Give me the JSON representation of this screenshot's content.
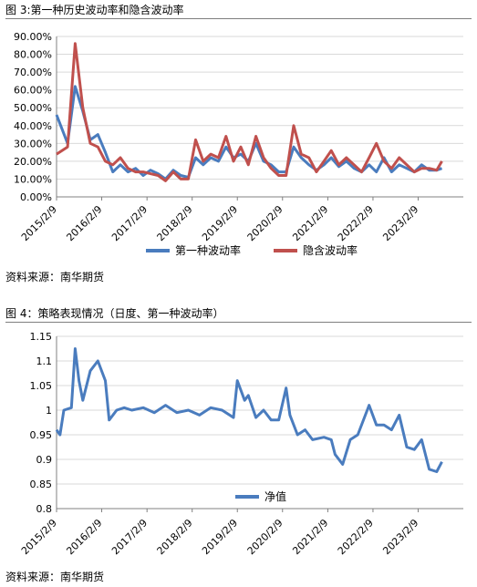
{
  "fig1": {
    "title": "图 3:第一种历史波动率和隐含波动率",
    "source": "资料来源：南华期货"
  },
  "fig2": {
    "title": "图 4：策略表现情况（日度、第一种波动率）",
    "source": "资料来源：南华期货"
  },
  "colors": {
    "hv": "#4a7cbe",
    "iv": "#c0504d",
    "nav": "#4a7cbe",
    "grid": "#d9d9d9",
    "axis": "#808080"
  },
  "chart_data": [
    {
      "type": "line",
      "ylim": [
        0,
        90
      ],
      "yticks": [
        "0.00%",
        "10.00%",
        "20.00%",
        "30.00%",
        "40.00%",
        "50.00%",
        "60.00%",
        "70.00%",
        "80.00%",
        "90.00%"
      ],
      "xticks": [
        "2015/2/9",
        "2016/2/9",
        "2017/2/9",
        "2018/2/9",
        "2019/2/9",
        "2020/2/9",
        "2021/2/9",
        "2022/2/9",
        "2023/2/9"
      ],
      "x": [
        "2015/2/9",
        "2015/5/9",
        "2015/7/9",
        "2015/9/9",
        "2015/11/9",
        "2016/1/9",
        "2016/3/9",
        "2016/5/9",
        "2016/7/9",
        "2016/9/9",
        "2016/11/9",
        "2017/1/9",
        "2017/3/9",
        "2017/5/9",
        "2017/7/9",
        "2017/9/9",
        "2017/11/9",
        "2018/1/9",
        "2018/3/9",
        "2018/5/9",
        "2018/7/9",
        "2018/9/9",
        "2018/11/9",
        "2019/1/9",
        "2019/3/9",
        "2019/5/9",
        "2019/7/9",
        "2019/9/9",
        "2019/11/9",
        "2020/1/9",
        "2020/3/9",
        "2020/5/9",
        "2020/7/9",
        "2020/9/9",
        "2020/11/9",
        "2021/1/9",
        "2021/3/9",
        "2021/5/9",
        "2021/7/9",
        "2021/9/9",
        "2021/11/9",
        "2022/1/9",
        "2022/3/9",
        "2022/5/9",
        "2022/7/9",
        "2022/9/9",
        "2022/11/9",
        "2023/1/9",
        "2023/3/9",
        "2023/5/9",
        "2023/7/9",
        "2023/8/20"
      ],
      "series": [
        {
          "name": "第一种波动率",
          "values": [
            46,
            30,
            62,
            48,
            32,
            35,
            25,
            14,
            18,
            14,
            16,
            12,
            15,
            13,
            10,
            15,
            12,
            11,
            22,
            18,
            22,
            20,
            28,
            22,
            24,
            20,
            30,
            20,
            18,
            14,
            14,
            28,
            22,
            18,
            15,
            18,
            22,
            17,
            20,
            16,
            14,
            18,
            14,
            22,
            14,
            18,
            16,
            14,
            18,
            15,
            15,
            16
          ]
        },
        {
          "name": "隐含波动率",
          "values": [
            24,
            28,
            86,
            50,
            30,
            28,
            20,
            18,
            22,
            16,
            14,
            14,
            13,
            12,
            9,
            14,
            10,
            10,
            32,
            20,
            24,
            22,
            34,
            20,
            28,
            18,
            34,
            22,
            16,
            12,
            12,
            40,
            24,
            22,
            14,
            20,
            26,
            18,
            22,
            18,
            14,
            22,
            30,
            20,
            16,
            22,
            18,
            14,
            16,
            16,
            15,
            20
          ]
        }
      ]
    },
    {
      "type": "line",
      "ylim": [
        0.8,
        1.15
      ],
      "yticks": [
        "0.8",
        "0.85",
        "0.9",
        "0.95",
        "1",
        "1.05",
        "1.1",
        "1.15"
      ],
      "xticks": [
        "2015/2/9",
        "2016/2/9",
        "2017/2/9",
        "2018/2/9",
        "2019/2/9",
        "2020/2/9",
        "2021/2/9",
        "2022/2/9",
        "2023/2/9"
      ],
      "x": [
        "2015/2/9",
        "2015/3/9",
        "2015/4/9",
        "2015/6/9",
        "2015/7/9",
        "2015/8/9",
        "2015/9/9",
        "2015/11/9",
        "2016/1/9",
        "2016/3/9",
        "2016/4/9",
        "2016/6/9",
        "2016/8/9",
        "2016/10/9",
        "2017/1/9",
        "2017/4/9",
        "2017/7/9",
        "2017/10/9",
        "2018/1/9",
        "2018/4/9",
        "2018/7/9",
        "2018/10/9",
        "2019/1/9",
        "2019/2/9",
        "2019/4/9",
        "2019/5/9",
        "2019/7/9",
        "2019/9/9",
        "2019/11/9",
        "2020/1/9",
        "2020/3/9",
        "2020/4/9",
        "2020/6/9",
        "2020/8/9",
        "2020/10/9",
        "2021/1/9",
        "2021/3/9",
        "2021/4/9",
        "2021/6/9",
        "2021/8/9",
        "2021/10/9",
        "2022/1/9",
        "2022/3/9",
        "2022/5/9",
        "2022/7/9",
        "2022/9/9",
        "2022/11/9",
        "2023/1/9",
        "2023/3/9",
        "2023/5/9",
        "2023/7/9",
        "2023/8/20"
      ],
      "series": [
        {
          "name": "净值",
          "values": [
            0.96,
            0.95,
            1.0,
            1.005,
            1.125,
            1.06,
            1.02,
            1.08,
            1.1,
            1.06,
            0.98,
            1.0,
            1.005,
            1.0,
            1.005,
            0.995,
            1.01,
            0.995,
            1.0,
            0.99,
            1.005,
            1.0,
            0.985,
            1.06,
            1.02,
            1.03,
            0.985,
            1.0,
            0.98,
            0.98,
            1.045,
            0.99,
            0.95,
            0.96,
            0.94,
            0.945,
            0.94,
            0.91,
            0.89,
            0.94,
            0.95,
            1.01,
            0.97,
            0.97,
            0.96,
            0.99,
            0.925,
            0.92,
            0.94,
            0.88,
            0.875,
            0.895
          ]
        }
      ]
    }
  ]
}
